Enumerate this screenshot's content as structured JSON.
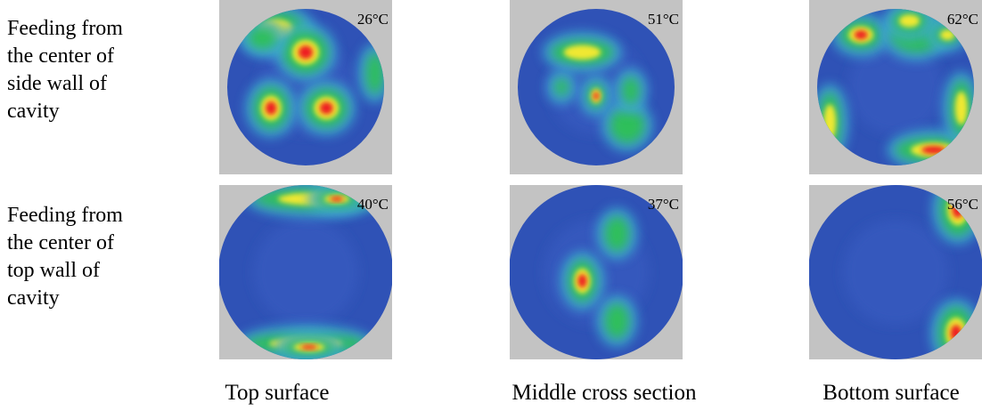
{
  "rows": [
    {
      "label_lines": [
        "Feeding from",
        "the center of",
        "side wall of",
        "cavity"
      ],
      "temperatures": [
        "26°C",
        "51°C",
        "62°C"
      ]
    },
    {
      "label_lines": [
        "Feeding from",
        "the center of",
        "top wall of",
        "cavity"
      ],
      "temperatures": [
        "40°C",
        "37°C",
        "56°C"
      ]
    }
  ],
  "columns": [
    "Top surface",
    "Middle cross section",
    "Bottom surface"
  ]
}
